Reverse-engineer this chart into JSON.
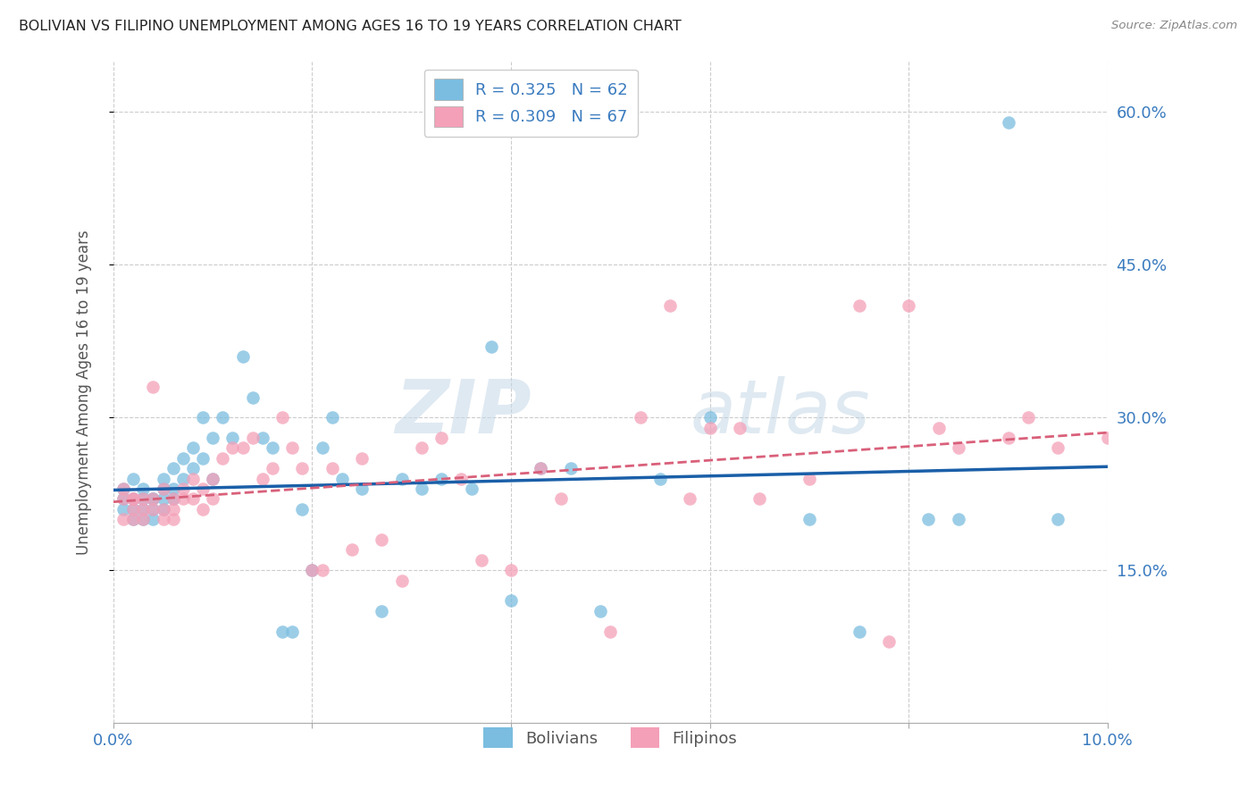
{
  "title": "BOLIVIAN VS FILIPINO UNEMPLOYMENT AMONG AGES 16 TO 19 YEARS CORRELATION CHART",
  "source": "Source: ZipAtlas.com",
  "ylabel": "Unemployment Among Ages 16 to 19 years",
  "xlim": [
    0.0,
    0.1
  ],
  "ylim": [
    0.0,
    0.65
  ],
  "bolivian_color": "#7bbde0",
  "filipino_color": "#f4a0b8",
  "bolivian_line_color": "#1a5fa8",
  "filipino_line_color": "#d9607a",
  "background_color": "#ffffff",
  "grid_color": "#cccccc",
  "watermark_zip": "ZIP",
  "watermark_atlas": "atlas",
  "bolivians_x": [
    0.001,
    0.001,
    0.001,
    0.002,
    0.002,
    0.002,
    0.002,
    0.003,
    0.003,
    0.003,
    0.003,
    0.004,
    0.004,
    0.004,
    0.004,
    0.005,
    0.005,
    0.005,
    0.005,
    0.006,
    0.006,
    0.006,
    0.007,
    0.007,
    0.008,
    0.008,
    0.009,
    0.009,
    0.01,
    0.01,
    0.011,
    0.012,
    0.013,
    0.014,
    0.015,
    0.016,
    0.017,
    0.018,
    0.019,
    0.02,
    0.021,
    0.022,
    0.023,
    0.025,
    0.027,
    0.029,
    0.031,
    0.033,
    0.036,
    0.038,
    0.04,
    0.043,
    0.046,
    0.049,
    0.055,
    0.06,
    0.07,
    0.075,
    0.082,
    0.085,
    0.09,
    0.095
  ],
  "bolivians_y": [
    0.21,
    0.22,
    0.23,
    0.2,
    0.21,
    0.22,
    0.24,
    0.2,
    0.21,
    0.22,
    0.23,
    0.2,
    0.22,
    0.21,
    0.22,
    0.22,
    0.21,
    0.23,
    0.24,
    0.22,
    0.23,
    0.25,
    0.26,
    0.24,
    0.25,
    0.27,
    0.26,
    0.3,
    0.28,
    0.24,
    0.3,
    0.28,
    0.36,
    0.32,
    0.28,
    0.27,
    0.09,
    0.09,
    0.21,
    0.15,
    0.27,
    0.3,
    0.24,
    0.23,
    0.11,
    0.24,
    0.23,
    0.24,
    0.23,
    0.37,
    0.12,
    0.25,
    0.25,
    0.11,
    0.24,
    0.3,
    0.2,
    0.09,
    0.2,
    0.2,
    0.59,
    0.2
  ],
  "filipinos_x": [
    0.001,
    0.001,
    0.001,
    0.002,
    0.002,
    0.002,
    0.002,
    0.003,
    0.003,
    0.003,
    0.004,
    0.004,
    0.004,
    0.005,
    0.005,
    0.005,
    0.006,
    0.006,
    0.006,
    0.007,
    0.007,
    0.008,
    0.008,
    0.009,
    0.009,
    0.01,
    0.01,
    0.011,
    0.012,
    0.013,
    0.014,
    0.015,
    0.016,
    0.017,
    0.018,
    0.019,
    0.02,
    0.021,
    0.022,
    0.024,
    0.025,
    0.027,
    0.029,
    0.031,
    0.033,
    0.035,
    0.037,
    0.04,
    0.043,
    0.045,
    0.05,
    0.053,
    0.056,
    0.058,
    0.06,
    0.063,
    0.065,
    0.07,
    0.075,
    0.078,
    0.08,
    0.083,
    0.085,
    0.09,
    0.092,
    0.095,
    0.1
  ],
  "filipinos_y": [
    0.22,
    0.23,
    0.2,
    0.21,
    0.22,
    0.2,
    0.22,
    0.21,
    0.2,
    0.22,
    0.21,
    0.22,
    0.33,
    0.2,
    0.21,
    0.23,
    0.22,
    0.2,
    0.21,
    0.23,
    0.22,
    0.22,
    0.24,
    0.21,
    0.23,
    0.22,
    0.24,
    0.26,
    0.27,
    0.27,
    0.28,
    0.24,
    0.25,
    0.3,
    0.27,
    0.25,
    0.15,
    0.15,
    0.25,
    0.17,
    0.26,
    0.18,
    0.14,
    0.27,
    0.28,
    0.24,
    0.16,
    0.15,
    0.25,
    0.22,
    0.09,
    0.3,
    0.41,
    0.22,
    0.29,
    0.29,
    0.22,
    0.24,
    0.41,
    0.08,
    0.41,
    0.29,
    0.27,
    0.28,
    0.3,
    0.27,
    0.28
  ]
}
